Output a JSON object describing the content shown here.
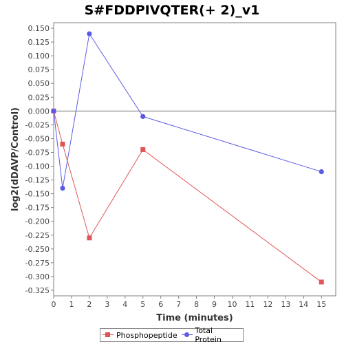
{
  "chart_data": {
    "type": "line",
    "title": "S#FDDPIVQTER(+ 2)_v1",
    "xlabel": "Time (minutes)",
    "ylabel": "log2(dDAVP/Control)",
    "xlim": [
      0,
      15.8
    ],
    "ylim": [
      -0.335,
      0.16
    ],
    "x_ticks": [
      0,
      1,
      2,
      3,
      4,
      5,
      6,
      7,
      8,
      9,
      10,
      11,
      12,
      13,
      14,
      15
    ],
    "y_ticks": [
      0.15,
      0.125,
      0.1,
      0.075,
      0.05,
      0.025,
      0.0,
      -0.025,
      -0.05,
      -0.075,
      -0.1,
      -0.125,
      -0.15,
      -0.175,
      -0.2,
      -0.225,
      -0.25,
      -0.275,
      -0.3,
      -0.325
    ],
    "y_tick_labels": [
      "0.150",
      "0.125",
      "0.100",
      "0.075",
      "0.050",
      "0.025",
      "0.000",
      "-0.025",
      "-0.050",
      "-0.075",
      "-0.100",
      "-0.125",
      "-0.150",
      "-0.175",
      "-0.200",
      "-0.225",
      "-0.250",
      "-0.275",
      "-0.300",
      "-0.325"
    ],
    "grid": false,
    "zero_line": true,
    "legend_position": "bottom",
    "series": [
      {
        "name": "Phosphopeptide",
        "color": "#e05555",
        "marker": "square",
        "x": [
          0,
          0.5,
          2,
          5,
          15
        ],
        "y": [
          0.0,
          -0.06,
          -0.23,
          -0.07,
          -0.31
        ]
      },
      {
        "name": "Total Protein",
        "color": "#5a5ae6",
        "marker": "circle",
        "x": [
          0,
          0.5,
          2,
          5,
          15
        ],
        "y": [
          0.0,
          -0.14,
          0.14,
          -0.01,
          -0.11
        ]
      }
    ]
  }
}
